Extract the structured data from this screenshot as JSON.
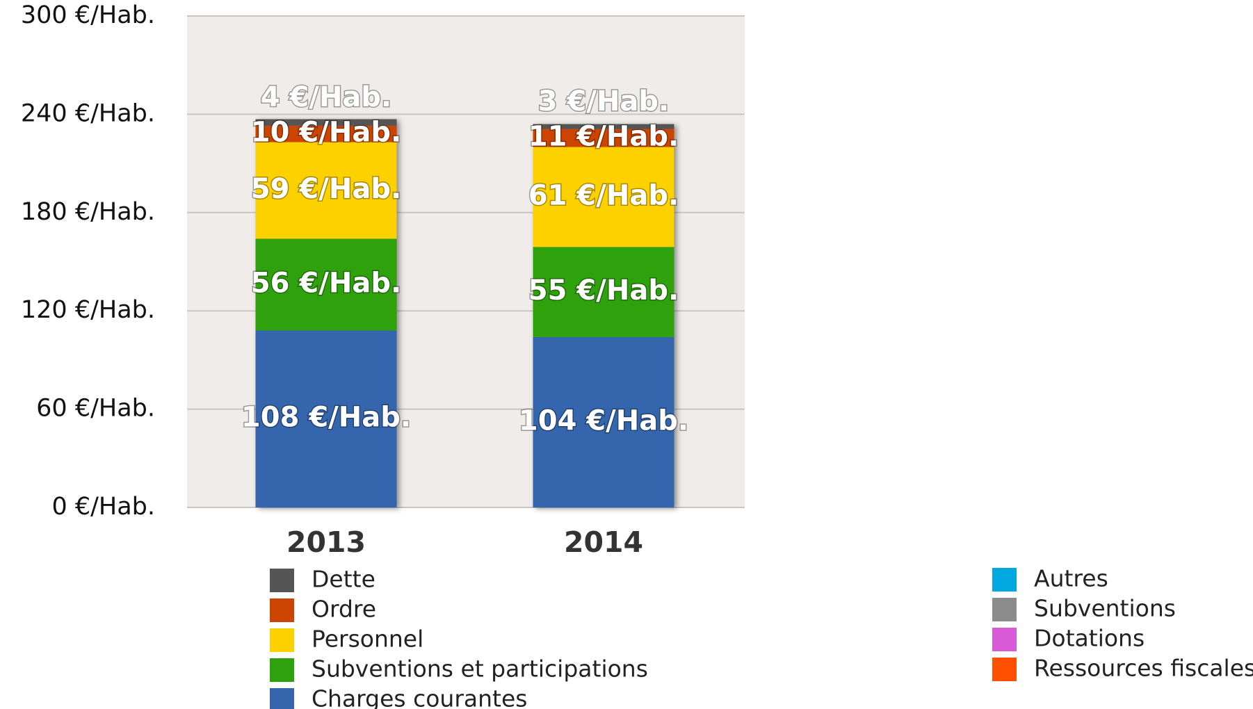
{
  "chart_data": {
    "type": "stacked-bar",
    "categories": [
      "2013",
      "2014"
    ],
    "series": [
      {
        "name": "Charges courantes",
        "color": "#3566ad",
        "values": [
          108,
          104
        ],
        "value_labels": [
          "108 €/Hab.",
          "104 €/Hab."
        ]
      },
      {
        "name": "Subventions et participations",
        "color": "#2ea10e",
        "values": [
          56,
          55
        ],
        "value_labels": [
          "56 €/Hab.",
          "55 €/Hab."
        ]
      },
      {
        "name": "Personnel",
        "color": "#fdd000",
        "values": [
          59,
          61
        ],
        "value_labels": [
          "59 €/Hab.",
          "61 €/Hab."
        ]
      },
      {
        "name": "Ordre",
        "color": "#cc4400",
        "values": [
          10,
          11
        ],
        "value_labels": [
          "10 €/Hab.",
          "11 €/Hab."
        ]
      },
      {
        "name": "Dette",
        "color": "#555555",
        "values": [
          4,
          3
        ],
        "value_labels": [
          "4 €/Hab.",
          "3 €/Hab."
        ]
      }
    ],
    "extra_legend": [
      {
        "name": "Autres",
        "color": "#00a8e0"
      },
      {
        "name": "Subventions",
        "color": "#8c8c8c"
      },
      {
        "name": "Dotations",
        "color": "#d85ad8"
      },
      {
        "name": "Ressources fiscales",
        "color": "#ff5000"
      }
    ],
    "ylim": [
      0,
      300
    ],
    "yticks": [
      {
        "value": 0,
        "label": "0 €/Hab."
      },
      {
        "value": 60,
        "label": "60 €/Hab."
      },
      {
        "value": 120,
        "label": "120 €/Hab."
      },
      {
        "value": 180,
        "label": "180 €/Hab."
      },
      {
        "value": 240,
        "label": "240 €/Hab."
      },
      {
        "value": 300,
        "label": "300 €/Hab."
      }
    ],
    "grid": true
  }
}
